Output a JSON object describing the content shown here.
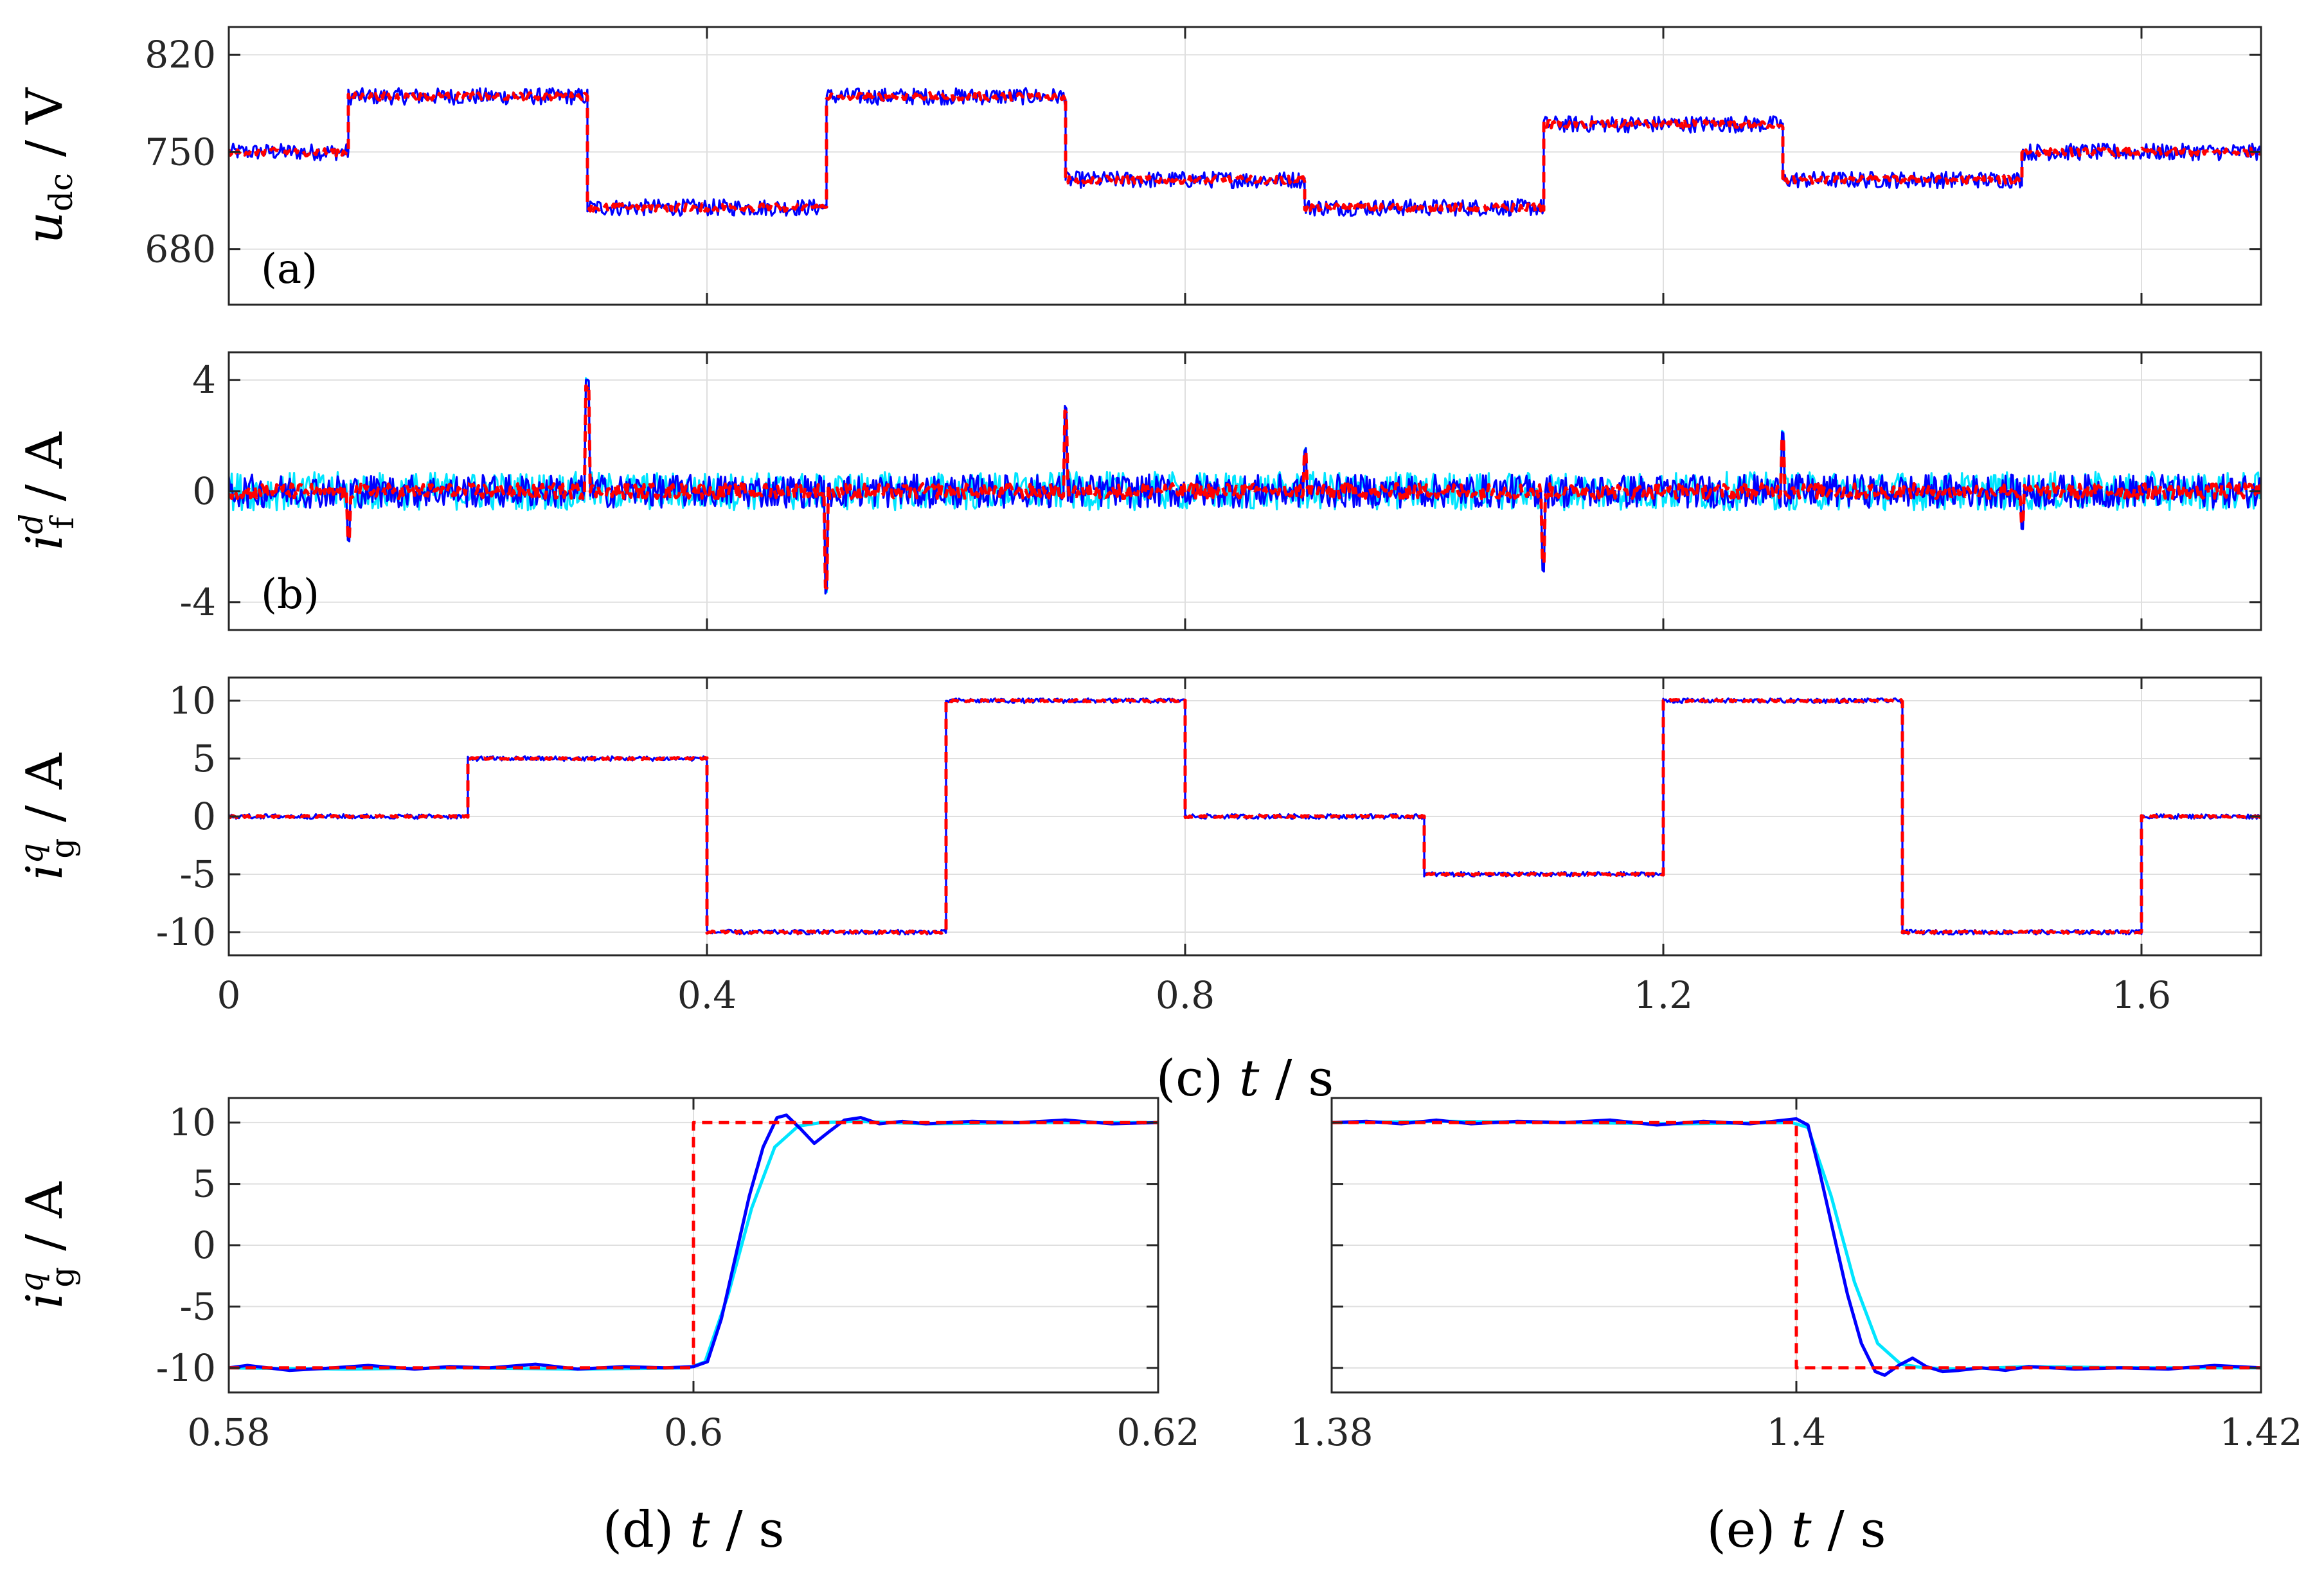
{
  "colors": {
    "reference": "#ff0000",
    "measured_a": "#0000ff",
    "measured_b": "#00e5ff",
    "grid": "#dfdfdf",
    "axes": "#262626"
  },
  "chart_data": [
    {
      "id": "a",
      "type": "line",
      "panel_label": "(a)",
      "ylabel": {
        "sym": "u",
        "sub": "dc",
        "unit": " / V"
      },
      "xlim": [
        0,
        1.7
      ],
      "ylim": [
        640,
        840
      ],
      "yticks": [
        680,
        750,
        820
      ],
      "ytick_labels": [
        "680",
        "750",
        "820"
      ],
      "xticks": [
        0,
        0.4,
        0.8,
        1.2,
        1.6
      ],
      "xtick_labels": [],
      "grid": true,
      "noise": 6,
      "series": [
        {
          "role": "measured_a",
          "color": "#0000ff",
          "x": [
            0,
            0.1,
            0.1,
            0.3,
            0.3,
            0.5,
            0.5,
            0.7,
            0.7,
            0.9,
            0.9,
            1.1,
            1.1,
            1.3,
            1.3,
            1.5,
            1.5,
            1.7
          ],
          "y": [
            750,
            750,
            790,
            790,
            710,
            710,
            790,
            790,
            730,
            730,
            710,
            710,
            770,
            770,
            730,
            730,
            750,
            750
          ]
        },
        {
          "role": "reference",
          "color": "#ff0000",
          "dashed": true,
          "x": [
            0,
            0.1,
            0.1,
            0.3,
            0.3,
            0.5,
            0.5,
            0.7,
            0.7,
            0.9,
            0.9,
            1.1,
            1.1,
            1.3,
            1.3,
            1.5,
            1.5,
            1.7
          ],
          "y": [
            750,
            750,
            790,
            790,
            710,
            710,
            790,
            790,
            730,
            730,
            710,
            710,
            770,
            770,
            730,
            730,
            750,
            750
          ]
        }
      ]
    },
    {
      "id": "b",
      "type": "line",
      "panel_label": "(b)",
      "ylabel": {
        "sym": "i",
        "sub": "f",
        "sup": "d",
        "unit": " / A"
      },
      "xlim": [
        0,
        1.7
      ],
      "ylim": [
        -5,
        5
      ],
      "yticks": [
        -4,
        0,
        4
      ],
      "ytick_labels": [
        "-4",
        "0",
        "4"
      ],
      "xticks": [
        0,
        0.4,
        0.8,
        1.2,
        1.6
      ],
      "xtick_labels": [],
      "grid": true,
      "noise": 0.6,
      "spikes": [
        {
          "t": 0.1,
          "v": -1.8
        },
        {
          "t": 0.3,
          "v": 4.0
        },
        {
          "t": 0.5,
          "v": -3.6
        },
        {
          "t": 0.7,
          "v": 3.0
        },
        {
          "t": 0.9,
          "v": 1.5
        },
        {
          "t": 1.1,
          "v": -2.8
        },
        {
          "t": 1.3,
          "v": 2.1
        },
        {
          "t": 1.5,
          "v": -1.3
        }
      ],
      "series": [
        {
          "role": "measured_b",
          "color": "#00e5ff",
          "x": [
            0,
            1.7
          ],
          "y": [
            0,
            0
          ]
        },
        {
          "role": "measured_a",
          "color": "#0000ff",
          "x": [
            0,
            1.7
          ],
          "y": [
            0,
            0
          ]
        },
        {
          "role": "reference",
          "color": "#ff0000",
          "dashed": true,
          "x": [
            0,
            1.7
          ],
          "y": [
            0,
            0
          ]
        }
      ]
    },
    {
      "id": "c",
      "type": "line",
      "panel_label": "",
      "ylabel": {
        "sym": "i",
        "sub": "g",
        "sup": "q",
        "unit": " / A"
      },
      "xlabel": {
        "prefix": "(c) ",
        "sym": "t",
        "unit": " / s"
      },
      "xlim": [
        0,
        1.7
      ],
      "ylim": [
        -12,
        12
      ],
      "yticks": [
        -10,
        -5,
        0,
        5,
        10
      ],
      "ytick_labels": [
        "-10",
        "-5",
        "0",
        "5",
        "10"
      ],
      "xticks": [
        0,
        0.4,
        0.8,
        1.2,
        1.6
      ],
      "xtick_labels": [
        "0",
        "0.4",
        "0.8",
        "1.2",
        "1.6"
      ],
      "grid": true,
      "noise": 0.2,
      "series": [
        {
          "role": "measured_a",
          "color": "#0000ff",
          "x": [
            0,
            0.2,
            0.2,
            0.4,
            0.4,
            0.6,
            0.6,
            0.8,
            0.8,
            1.0,
            1.0,
            1.2,
            1.2,
            1.4,
            1.4,
            1.6,
            1.6,
            1.7
          ],
          "y": [
            0,
            0,
            5,
            5,
            -10,
            -10,
            10,
            10,
            0,
            0,
            -5,
            -5,
            10,
            10,
            -10,
            -10,
            0,
            0
          ]
        },
        {
          "role": "reference",
          "color": "#ff0000",
          "dashed": true,
          "x": [
            0,
            0.2,
            0.2,
            0.4,
            0.4,
            0.6,
            0.6,
            0.8,
            0.8,
            1.0,
            1.0,
            1.2,
            1.2,
            1.4,
            1.4,
            1.6,
            1.6,
            1.7
          ],
          "y": [
            0,
            0,
            5,
            5,
            -10,
            -10,
            10,
            10,
            0,
            0,
            -5,
            -5,
            10,
            10,
            -10,
            -10,
            0,
            0
          ]
        }
      ]
    },
    {
      "id": "d",
      "type": "line",
      "panel_label": "",
      "ylabel": {
        "sym": "i",
        "sub": "g",
        "sup": "q",
        "unit": " / A"
      },
      "xlabel": {
        "prefix": "(d) ",
        "sym": "t",
        "unit": " / s"
      },
      "xlim": [
        0.58,
        0.62
      ],
      "ylim": [
        -12,
        12
      ],
      "yticks": [
        -10,
        -5,
        0,
        5,
        10
      ],
      "ytick_labels": [
        "-10",
        "-5",
        "0",
        "5",
        "10"
      ],
      "xticks": [
        0.58,
        0.6,
        0.62
      ],
      "xtick_labels": [
        "0.58",
        "0.6",
        "0.62"
      ],
      "grid": true,
      "series": [
        {
          "role": "measured_b",
          "color": "#00e5ff",
          "x": [
            0.58,
            0.585,
            0.59,
            0.595,
            0.5998,
            0.6005,
            0.6015,
            0.6025,
            0.6035,
            0.6045,
            0.6055,
            0.607,
            0.61,
            0.615,
            0.62
          ],
          "y": [
            -10,
            -10.1,
            -10,
            -10.1,
            -10,
            -9.5,
            -4,
            3,
            8,
            9.7,
            10,
            10.1,
            9.9,
            10,
            10
          ]
        },
        {
          "role": "measured_a",
          "color": "#0000ff",
          "x": [
            0.58,
            0.5808,
            0.5826,
            0.5845,
            0.586,
            0.588,
            0.5895,
            0.5912,
            0.5932,
            0.595,
            0.597,
            0.5988,
            0.6,
            0.6006,
            0.6012,
            0.6018,
            0.6024,
            0.603,
            0.6036,
            0.604,
            0.6046,
            0.6052,
            0.6058,
            0.6065,
            0.6072,
            0.608,
            0.609,
            0.61,
            0.612,
            0.614,
            0.616,
            0.618,
            0.62
          ],
          "y": [
            -10,
            -9.8,
            -10.2,
            -10,
            -9.8,
            -10.1,
            -9.9,
            -10,
            -9.7,
            -10.1,
            -9.9,
            -10,
            -9.9,
            -9.5,
            -6,
            -1,
            4,
            8,
            10.4,
            10.6,
            9.5,
            8.3,
            9.2,
            10.2,
            10.4,
            9.9,
            10.1,
            9.9,
            10.1,
            10,
            10.2,
            9.9,
            10
          ]
        },
        {
          "role": "reference",
          "color": "#ff0000",
          "dashed": true,
          "x": [
            0.58,
            0.6,
            0.6,
            0.62
          ],
          "y": [
            -10,
            -10,
            10,
            10
          ]
        }
      ]
    },
    {
      "id": "e",
      "type": "line",
      "panel_label": "",
      "ylabel": null,
      "xlabel": {
        "prefix": "(e) ",
        "sym": "t",
        "unit": " / s"
      },
      "xlim": [
        1.38,
        1.42
      ],
      "ylim": [
        -12,
        12
      ],
      "yticks": [
        -10,
        -5,
        0,
        5,
        10
      ],
      "ytick_labels": [],
      "xticks": [
        1.38,
        1.4,
        1.42
      ],
      "xtick_labels": [
        "1.38",
        "1.4",
        "1.42"
      ],
      "grid": true,
      "series": [
        {
          "role": "measured_b",
          "color": "#00e5ff",
          "x": [
            1.38,
            1.385,
            1.39,
            1.395,
            1.3998,
            1.4005,
            1.4015,
            1.4025,
            1.4035,
            1.4045,
            1.4055,
            1.407,
            1.41,
            1.415,
            1.42
          ],
          "y": [
            10,
            10.1,
            10,
            9.9,
            10,
            9.6,
            4,
            -3,
            -8,
            -9.7,
            -10,
            -10.1,
            -9.9,
            -10,
            -10
          ]
        },
        {
          "role": "measured_a",
          "color": "#0000ff",
          "x": [
            1.38,
            1.3815,
            1.383,
            1.3845,
            1.386,
            1.388,
            1.39,
            1.392,
            1.394,
            1.396,
            1.398,
            1.3995,
            1.4,
            1.4005,
            1.401,
            1.4016,
            1.4022,
            1.4028,
            1.4034,
            1.4038,
            1.4044,
            1.405,
            1.4056,
            1.4063,
            1.407,
            1.408,
            1.409,
            1.41,
            1.412,
            1.414,
            1.416,
            1.418,
            1.42
          ],
          "y": [
            10,
            10.1,
            9.9,
            10.2,
            9.9,
            10.1,
            10,
            10.2,
            9.8,
            10.1,
            9.9,
            10.2,
            10.3,
            9.8,
            6,
            1,
            -4,
            -8,
            -10.3,
            -10.6,
            -9.8,
            -9.2,
            -9.9,
            -10.3,
            -10.2,
            -10,
            -10.2,
            -9.9,
            -10.1,
            -10,
            -10.1,
            -9.8,
            -10
          ]
        },
        {
          "role": "reference",
          "color": "#ff0000",
          "dashed": true,
          "x": [
            1.38,
            1.4,
            1.4,
            1.42
          ],
          "y": [
            10,
            10,
            -10,
            -10
          ]
        }
      ]
    }
  ]
}
